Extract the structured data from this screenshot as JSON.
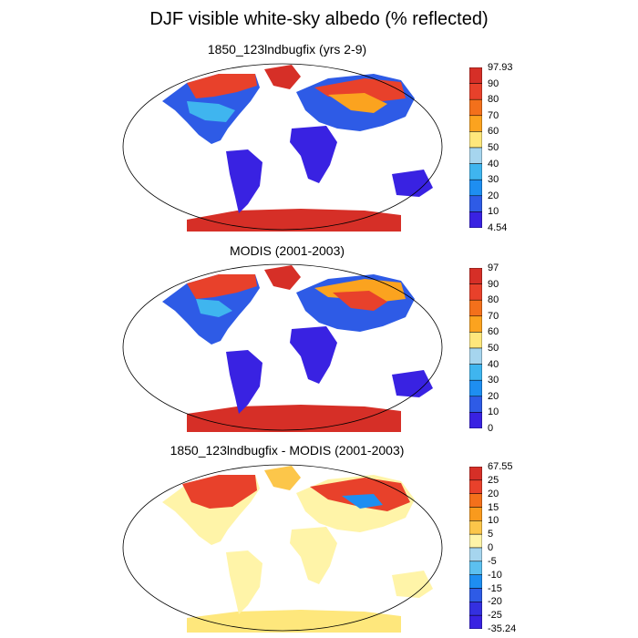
{
  "title": "DJF visible white-sky albedo (% reflected)",
  "panels": [
    {
      "title": "1850_123lndbugfix (yrs 2-9)",
      "colorbar": {
        "labels": [
          "97.93",
          "90",
          "80",
          "70",
          "60",
          "50",
          "40",
          "30",
          "20",
          "10",
          "4.54"
        ],
        "colors": [
          "#d62f27",
          "#e8412b",
          "#f3701b",
          "#fba31f",
          "#fee77c",
          "#a6d5ee",
          "#3fb5ef",
          "#1e8ef1",
          "#2e5be6",
          "#3922e2"
        ]
      }
    },
    {
      "title": "MODIS (2001-2003)",
      "colorbar": {
        "labels": [
          "97",
          "90",
          "80",
          "70",
          "60",
          "50",
          "40",
          "30",
          "20",
          "10",
          "0"
        ],
        "colors": [
          "#d62f27",
          "#e8412b",
          "#f3701b",
          "#fba31f",
          "#fee77c",
          "#a6d5ee",
          "#3fb5ef",
          "#1e8ef1",
          "#2e5be6",
          "#3922e2"
        ]
      }
    },
    {
      "title": "1850_123lndbugfix - MODIS (2001-2003)",
      "colorbar": {
        "labels": [
          "67.55",
          "25",
          "20",
          "15",
          "10",
          "5",
          "0",
          "-5",
          "-10",
          "-15",
          "-20",
          "-25",
          "-35.24"
        ],
        "colors": [
          "#d62f27",
          "#e8412b",
          "#f3701b",
          "#f99a1d",
          "#fcc64a",
          "#fff4a8",
          "#a6d5ee",
          "#5cc0f0",
          "#1e8ef1",
          "#2e5be6",
          "#3430e0",
          "#3922e2"
        ]
      }
    }
  ]
}
